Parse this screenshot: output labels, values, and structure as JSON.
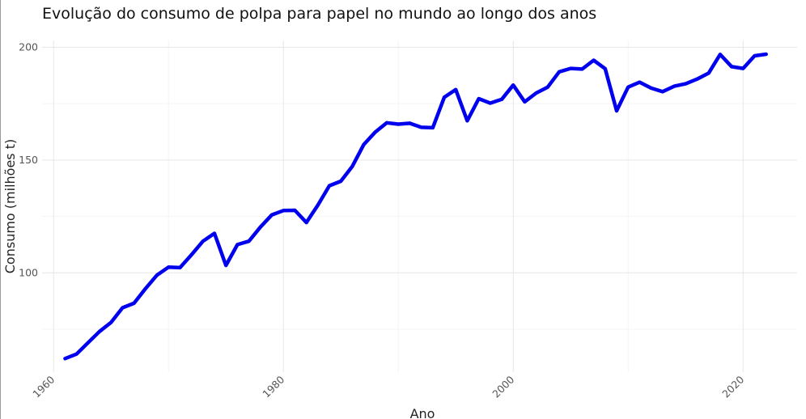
{
  "chart_data": {
    "type": "line",
    "title": "Evolução do consumo de polpa para papel no mundo ao longo dos anos",
    "xlabel": "Ano",
    "ylabel": "Consumo (milhões t)",
    "xlim": [
      1959,
      2024.7
    ],
    "ylim": [
      56,
      203
    ],
    "x_ticks": [
      "1960",
      "1980",
      "2000",
      "2020"
    ],
    "y_ticks": [
      "100",
      "150",
      "200"
    ],
    "grid": true,
    "line_color": "#0000ee",
    "series": [
      {
        "x": [
          1961,
          1962,
          1963,
          1964,
          1965,
          1966,
          1967,
          1968,
          1969,
          1970,
          1971,
          1972,
          1973,
          1974,
          1975,
          1976,
          1977,
          1978,
          1979,
          1980,
          1981,
          1982,
          1983,
          1984,
          1985,
          1986,
          1987,
          1988,
          1989,
          1990,
          1991,
          1992,
          1993,
          1994,
          1995,
          1996,
          1997,
          1998,
          1999,
          2000,
          2001,
          2002,
          2003,
          2004,
          2005,
          2006,
          2007,
          2008,
          2009,
          2010,
          2011,
          2012,
          2013,
          2014,
          2015,
          2016,
          2017,
          2018,
          2019,
          2020,
          2021,
          2022
        ],
        "y": [
          62,
          64,
          69,
          74,
          78,
          84.5,
          86.5,
          93,
          99,
          102.5,
          102.3,
          108,
          114,
          117.5,
          103.3,
          112.5,
          114,
          120.3,
          125.7,
          127.6,
          127.7,
          122.3,
          130,
          138.6,
          140.6,
          147.2,
          156.9,
          162.4,
          166.5,
          165.9,
          166.3,
          164.5,
          164.3,
          177.8,
          181.2,
          167.4,
          177.2,
          175.2,
          176.9,
          183.2,
          175.8,
          179.7,
          182.3,
          189.1,
          190.6,
          190.3,
          194.2,
          190.5,
          171.8,
          182.3,
          184.5,
          181.9,
          180.3,
          182.7,
          183.8,
          185.9,
          188.5,
          196.8,
          191.4,
          190.6,
          196.2,
          196.9
        ]
      }
    ]
  }
}
